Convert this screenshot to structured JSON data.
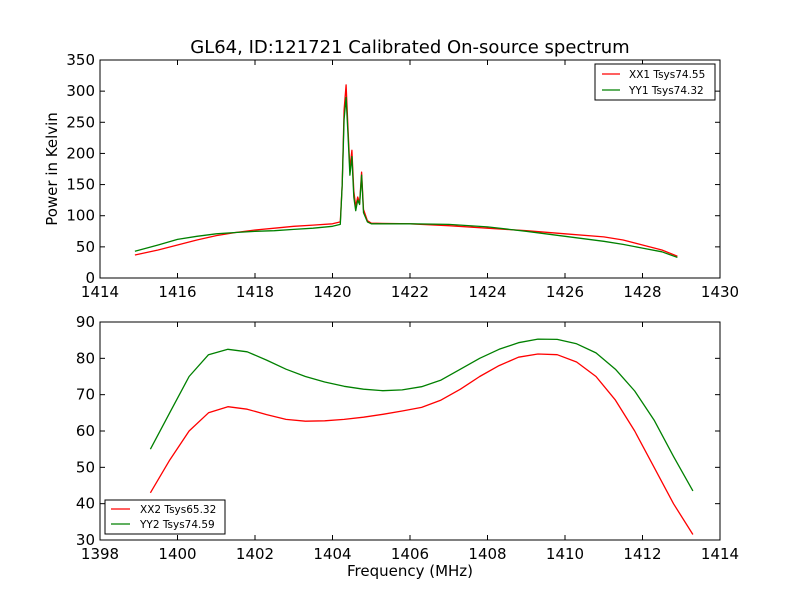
{
  "figure": {
    "title": "GL64, ID:121721 Calibrated On-source spectrum"
  },
  "chart_data": [
    {
      "type": "line",
      "title": "GL64, ID:121721 Calibrated On-source spectrum",
      "xlabel": "",
      "ylabel": "Power in Kelvin",
      "xlim": [
        1414,
        1430
      ],
      "ylim": [
        0,
        350
      ],
      "xticks": [
        1414,
        1416,
        1418,
        1420,
        1422,
        1424,
        1426,
        1428,
        1430
      ],
      "yticks": [
        0,
        50,
        100,
        150,
        200,
        250,
        300,
        350
      ],
      "grid": false,
      "legend_position": "top-right",
      "series": [
        {
          "name": "XX1 Tsys74.55",
          "color": "#ff0000",
          "points": [
            [
              1414.9,
              37
            ],
            [
              1415.5,
              45
            ],
            [
              1416.0,
              53
            ],
            [
              1416.5,
              61
            ],
            [
              1417.0,
              68
            ],
            [
              1417.5,
              73
            ],
            [
              1418.0,
              77
            ],
            [
              1418.5,
              80
            ],
            [
              1419.0,
              83
            ],
            [
              1419.5,
              85
            ],
            [
              1420.0,
              87
            ],
            [
              1420.2,
              90
            ],
            [
              1420.25,
              150
            ],
            [
              1420.3,
              270
            ],
            [
              1420.35,
              310
            ],
            [
              1420.4,
              240
            ],
            [
              1420.45,
              175
            ],
            [
              1420.5,
              205
            ],
            [
              1420.55,
              140
            ],
            [
              1420.6,
              115
            ],
            [
              1420.65,
              130
            ],
            [
              1420.7,
              120
            ],
            [
              1420.75,
              170
            ],
            [
              1420.8,
              110
            ],
            [
              1420.9,
              92
            ],
            [
              1421.0,
              88
            ],
            [
              1422.0,
              87
            ],
            [
              1423.0,
              84
            ],
            [
              1424.0,
              80
            ],
            [
              1425.0,
              76
            ],
            [
              1426.0,
              71
            ],
            [
              1427.0,
              66
            ],
            [
              1427.5,
              61
            ],
            [
              1428.0,
              53
            ],
            [
              1428.5,
              45
            ],
            [
              1428.9,
              35
            ]
          ]
        },
        {
          "name": "YY1 Tsys74.32",
          "color": "#008000",
          "points": [
            [
              1414.9,
              43
            ],
            [
              1415.5,
              53
            ],
            [
              1416.0,
              62
            ],
            [
              1416.5,
              67
            ],
            [
              1417.0,
              71
            ],
            [
              1417.5,
              73
            ],
            [
              1418.0,
              75
            ],
            [
              1418.5,
              76
            ],
            [
              1419.0,
              78
            ],
            [
              1419.5,
              80
            ],
            [
              1420.0,
              83
            ],
            [
              1420.2,
              86
            ],
            [
              1420.25,
              150
            ],
            [
              1420.3,
              255
            ],
            [
              1420.35,
              290
            ],
            [
              1420.4,
              230
            ],
            [
              1420.45,
              165
            ],
            [
              1420.5,
              195
            ],
            [
              1420.55,
              130
            ],
            [
              1420.6,
              108
            ],
            [
              1420.65,
              125
            ],
            [
              1420.7,
              118
            ],
            [
              1420.75,
              165
            ],
            [
              1420.8,
              105
            ],
            [
              1420.9,
              90
            ],
            [
              1421.0,
              87
            ],
            [
              1422.0,
              87
            ],
            [
              1423.0,
              86
            ],
            [
              1424.0,
              82
            ],
            [
              1425.0,
              75
            ],
            [
              1426.0,
              67
            ],
            [
              1427.0,
              59
            ],
            [
              1427.5,
              54
            ],
            [
              1428.0,
              48
            ],
            [
              1428.5,
              42
            ],
            [
              1428.9,
              33
            ]
          ]
        }
      ]
    },
    {
      "type": "line",
      "title": "",
      "xlabel": "Frequency (MHz)",
      "ylabel": "",
      "xlim": [
        1398,
        1414
      ],
      "ylim": [
        30,
        90
      ],
      "xticks": [
        1398,
        1400,
        1402,
        1404,
        1406,
        1408,
        1410,
        1412,
        1414
      ],
      "yticks": [
        30,
        40,
        50,
        60,
        70,
        80,
        90
      ],
      "grid": false,
      "legend_position": "bottom-left",
      "series": [
        {
          "name": "XX2 Tsys65.32",
          "color": "#ff0000",
          "points": [
            [
              1399.3,
              43
            ],
            [
              1399.8,
              52
            ],
            [
              1400.3,
              60
            ],
            [
              1400.8,
              65
            ],
            [
              1401.3,
              66.7
            ],
            [
              1401.8,
              66
            ],
            [
              1402.3,
              64.5
            ],
            [
              1402.8,
              63.2
            ],
            [
              1403.3,
              62.7
            ],
            [
              1403.8,
              62.8
            ],
            [
              1404.3,
              63.2
            ],
            [
              1404.8,
              63.8
            ],
            [
              1405.3,
              64.6
            ],
            [
              1405.8,
              65.5
            ],
            [
              1406.3,
              66.5
            ],
            [
              1406.8,
              68.5
            ],
            [
              1407.3,
              71.5
            ],
            [
              1407.8,
              75
            ],
            [
              1408.3,
              78
            ],
            [
              1408.8,
              80.3
            ],
            [
              1409.3,
              81.2
            ],
            [
              1409.8,
              81
            ],
            [
              1410.3,
              79
            ],
            [
              1410.8,
              75
            ],
            [
              1411.3,
              68.5
            ],
            [
              1411.8,
              60
            ],
            [
              1412.3,
              50
            ],
            [
              1412.8,
              40
            ],
            [
              1413.3,
              31.5
            ]
          ]
        },
        {
          "name": "YY2 Tsys74.59",
          "color": "#008000",
          "points": [
            [
              1399.3,
              55
            ],
            [
              1399.8,
              65
            ],
            [
              1400.3,
              75
            ],
            [
              1400.8,
              81
            ],
            [
              1401.3,
              82.5
            ],
            [
              1401.8,
              81.8
            ],
            [
              1402.3,
              79.5
            ],
            [
              1402.8,
              77
            ],
            [
              1403.3,
              75
            ],
            [
              1403.8,
              73.5
            ],
            [
              1404.3,
              72.3
            ],
            [
              1404.8,
              71.5
            ],
            [
              1405.3,
              71.1
            ],
            [
              1405.8,
              71.3
            ],
            [
              1406.3,
              72.2
            ],
            [
              1406.8,
              74
            ],
            [
              1407.3,
              77
            ],
            [
              1407.8,
              80
            ],
            [
              1408.3,
              82.5
            ],
            [
              1408.8,
              84.3
            ],
            [
              1409.3,
              85.3
            ],
            [
              1409.8,
              85.2
            ],
            [
              1410.3,
              84
            ],
            [
              1410.8,
              81.5
            ],
            [
              1411.3,
              77
            ],
            [
              1411.8,
              71
            ],
            [
              1412.3,
              63
            ],
            [
              1412.8,
              53
            ],
            [
              1413.3,
              43.5
            ]
          ]
        }
      ]
    }
  ]
}
